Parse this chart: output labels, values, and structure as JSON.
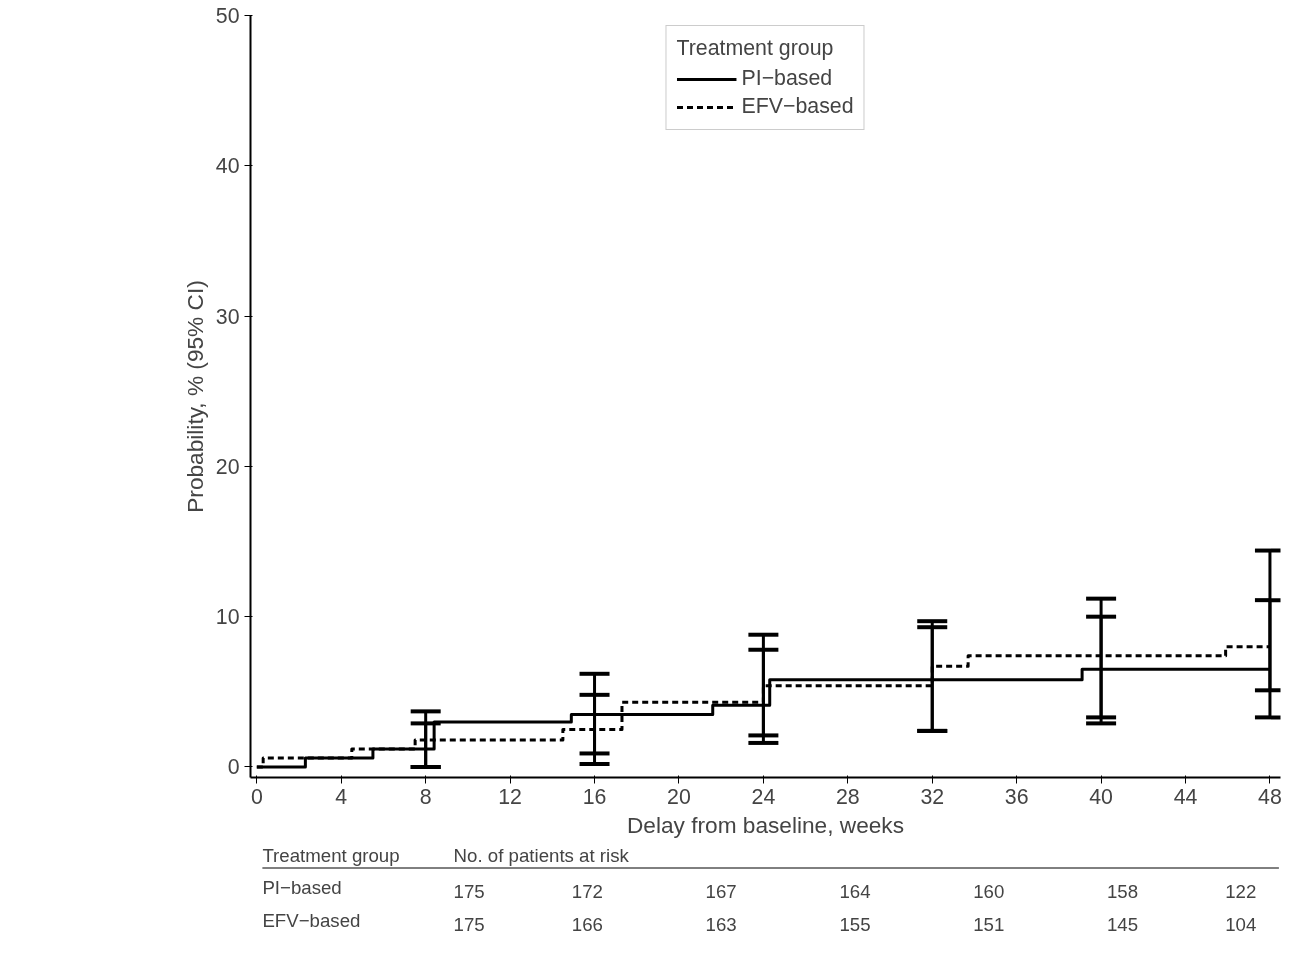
{
  "chart_data": {
    "type": "step",
    "xlabel": "Delay from baseline, weeks",
    "ylabel": "Probability, % (95% CI)",
    "legend_title": "Treatment group",
    "legend": "top",
    "xlim": [
      -0.3,
      48.5
    ],
    "ylim": [
      -0.7,
      50
    ],
    "xticks": [
      0,
      4,
      8,
      12,
      16,
      20,
      24,
      28,
      32,
      36,
      40,
      44,
      48
    ],
    "yticks": [
      0,
      10,
      20,
      30,
      40,
      50
    ],
    "grid": false,
    "series": [
      {
        "name": "PI−based",
        "color": "#000000",
        "line_style": "solid",
        "x": [
          0,
          2.3,
          5.5,
          8,
          8.4,
          14.9,
          16,
          21.6,
          24,
          24.3,
          32,
          39.1,
          40,
          48
        ],
        "values": [
          0,
          0.6,
          1.2,
          1.2,
          3.0,
          3.5,
          3.5,
          4.1,
          4.1,
          5.8,
          5.8,
          6.5,
          6.5,
          6.5
        ],
        "errors": [
          null,
          null,
          null,
          [
            0,
            3.7
          ],
          null,
          null,
          [
            0.9,
            6.2
          ],
          null,
          [
            1.6,
            7.8
          ],
          null,
          [
            2.4,
            9.3
          ],
          null,
          [
            2.9,
            10.0
          ],
          [
            3.3,
            11.1
          ]
        ]
      },
      {
        "name": "EFV−based",
        "color": "#000000",
        "line_style": "dashed",
        "x": [
          0,
          0.3,
          4.5,
          7.5,
          8,
          14.5,
          16,
          17.3,
          24,
          32,
          33.7,
          40,
          45.9,
          48
        ],
        "values": [
          0,
          0.6,
          1.2,
          1.8,
          1.8,
          2.5,
          2.5,
          4.3,
          5.4,
          6.7,
          7.4,
          7.4,
          8.0,
          8.0
        ],
        "errors": [
          null,
          null,
          null,
          null,
          [
            0,
            2.9
          ],
          null,
          [
            0.2,
            4.8
          ],
          null,
          [
            2.1,
            8.8
          ],
          [
            2.4,
            9.7
          ],
          null,
          [
            3.3,
            11.2
          ],
          null,
          [
            5.1,
            14.4
          ]
        ]
      }
    ],
    "annotations": [
      "Treatment group",
      "No. of patients at risk",
      "PI−based",
      "175",
      "172",
      "167",
      "164",
      "160",
      "158",
      "122",
      "EFV−based",
      "175",
      "166",
      "163",
      "155",
      "151",
      "145",
      "104"
    ]
  }
}
